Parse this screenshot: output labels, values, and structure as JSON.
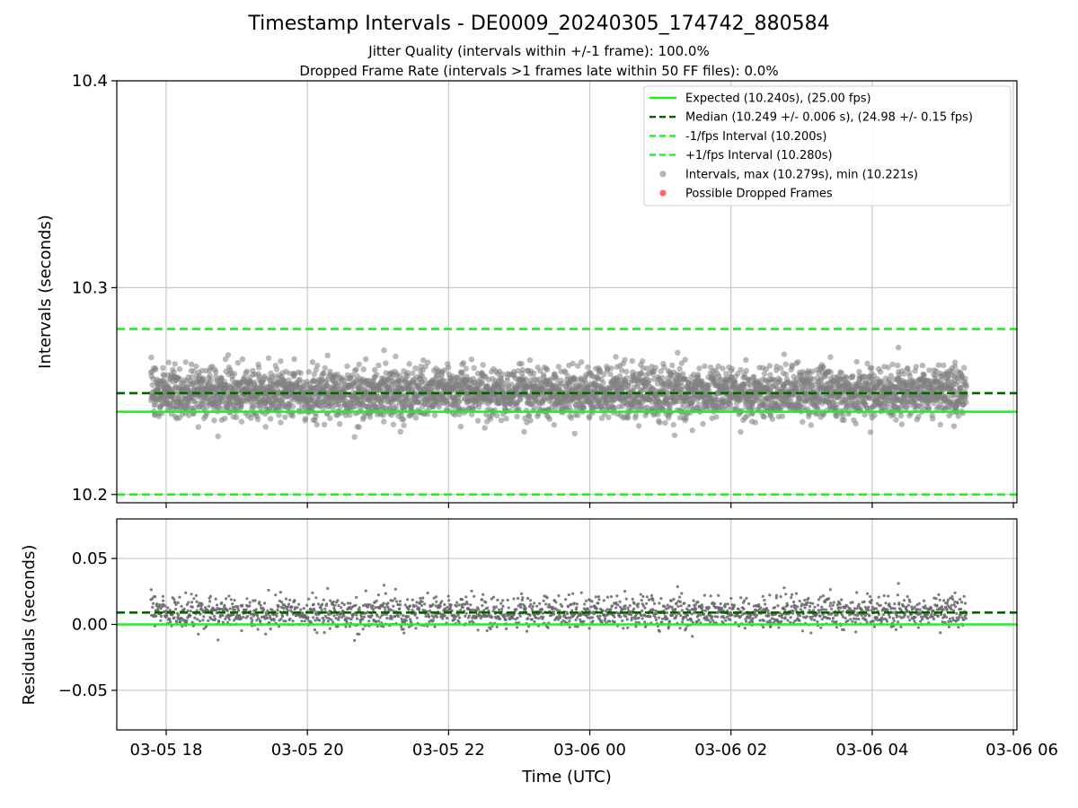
{
  "figure": {
    "title": "Timestamp Intervals - DE0009_20240305_174742_880584",
    "subtitle_jitter": "Jitter Quality (intervals within +/-1 frame): 100.0%",
    "subtitle_dropped": "Dropped Frame Rate (intervals >1 frames late within 50 FF files): 0.0%"
  },
  "colors": {
    "expected": "#22ee22",
    "median": "#006400",
    "bounds": "#22ee22",
    "intervals": "#808080",
    "dropped": "#ff5555",
    "grid": "#c8c8c8"
  },
  "chart_data": [
    {
      "type": "scatter",
      "panel": "intervals",
      "ylabel": "Intervals (seconds)",
      "xlabel": "",
      "ylim": [
        10.196,
        10.4
      ],
      "yticks": [
        "10.2",
        "10.3",
        "10.4"
      ],
      "xlim_hours": [
        17.3,
        30.05
      ],
      "x_tick_hours": [
        18,
        20,
        22,
        24,
        26,
        28,
        30
      ],
      "grid": true,
      "legend_position": "top-right",
      "lines": {
        "expected": 10.24,
        "median": 10.249,
        "lower_bound": 10.2,
        "upper_bound": 10.28
      },
      "legend": [
        "Expected (10.240s), (25.00 fps)",
        "Median (10.249 +/- 0.006 s), (24.98 +/- 0.15 fps)",
        "-1/fps Interval (10.200s)",
        "+1/fps Interval (10.280s)",
        "Intervals, max (10.279s), min (10.221s)",
        "Possible Dropped Frames"
      ],
      "intervals_summary": {
        "time_start": "03-05 17:47",
        "time_end": "03-06 05:20",
        "count": 4100,
        "median": 10.249,
        "std": 0.006,
        "max": 10.279,
        "min": 10.221
      },
      "dropped_frames": []
    },
    {
      "type": "scatter",
      "panel": "residuals",
      "ylabel": "Residuals (seconds)",
      "xlabel": "Time (UTC)",
      "ylim": [
        -0.08,
        0.08
      ],
      "yticks": [
        "−0.05",
        "0.00",
        "0.05"
      ],
      "xticks": [
        "03-05 18",
        "03-05 20",
        "03-05 22",
        "03-06 00",
        "03-06 02",
        "03-06 04",
        "03-06 06"
      ],
      "grid": true,
      "lines": {
        "zero": 0.0,
        "median_offset": 0.009
      },
      "residuals_summary": {
        "median": 0.009,
        "max": 0.039,
        "min": -0.019
      }
    }
  ]
}
